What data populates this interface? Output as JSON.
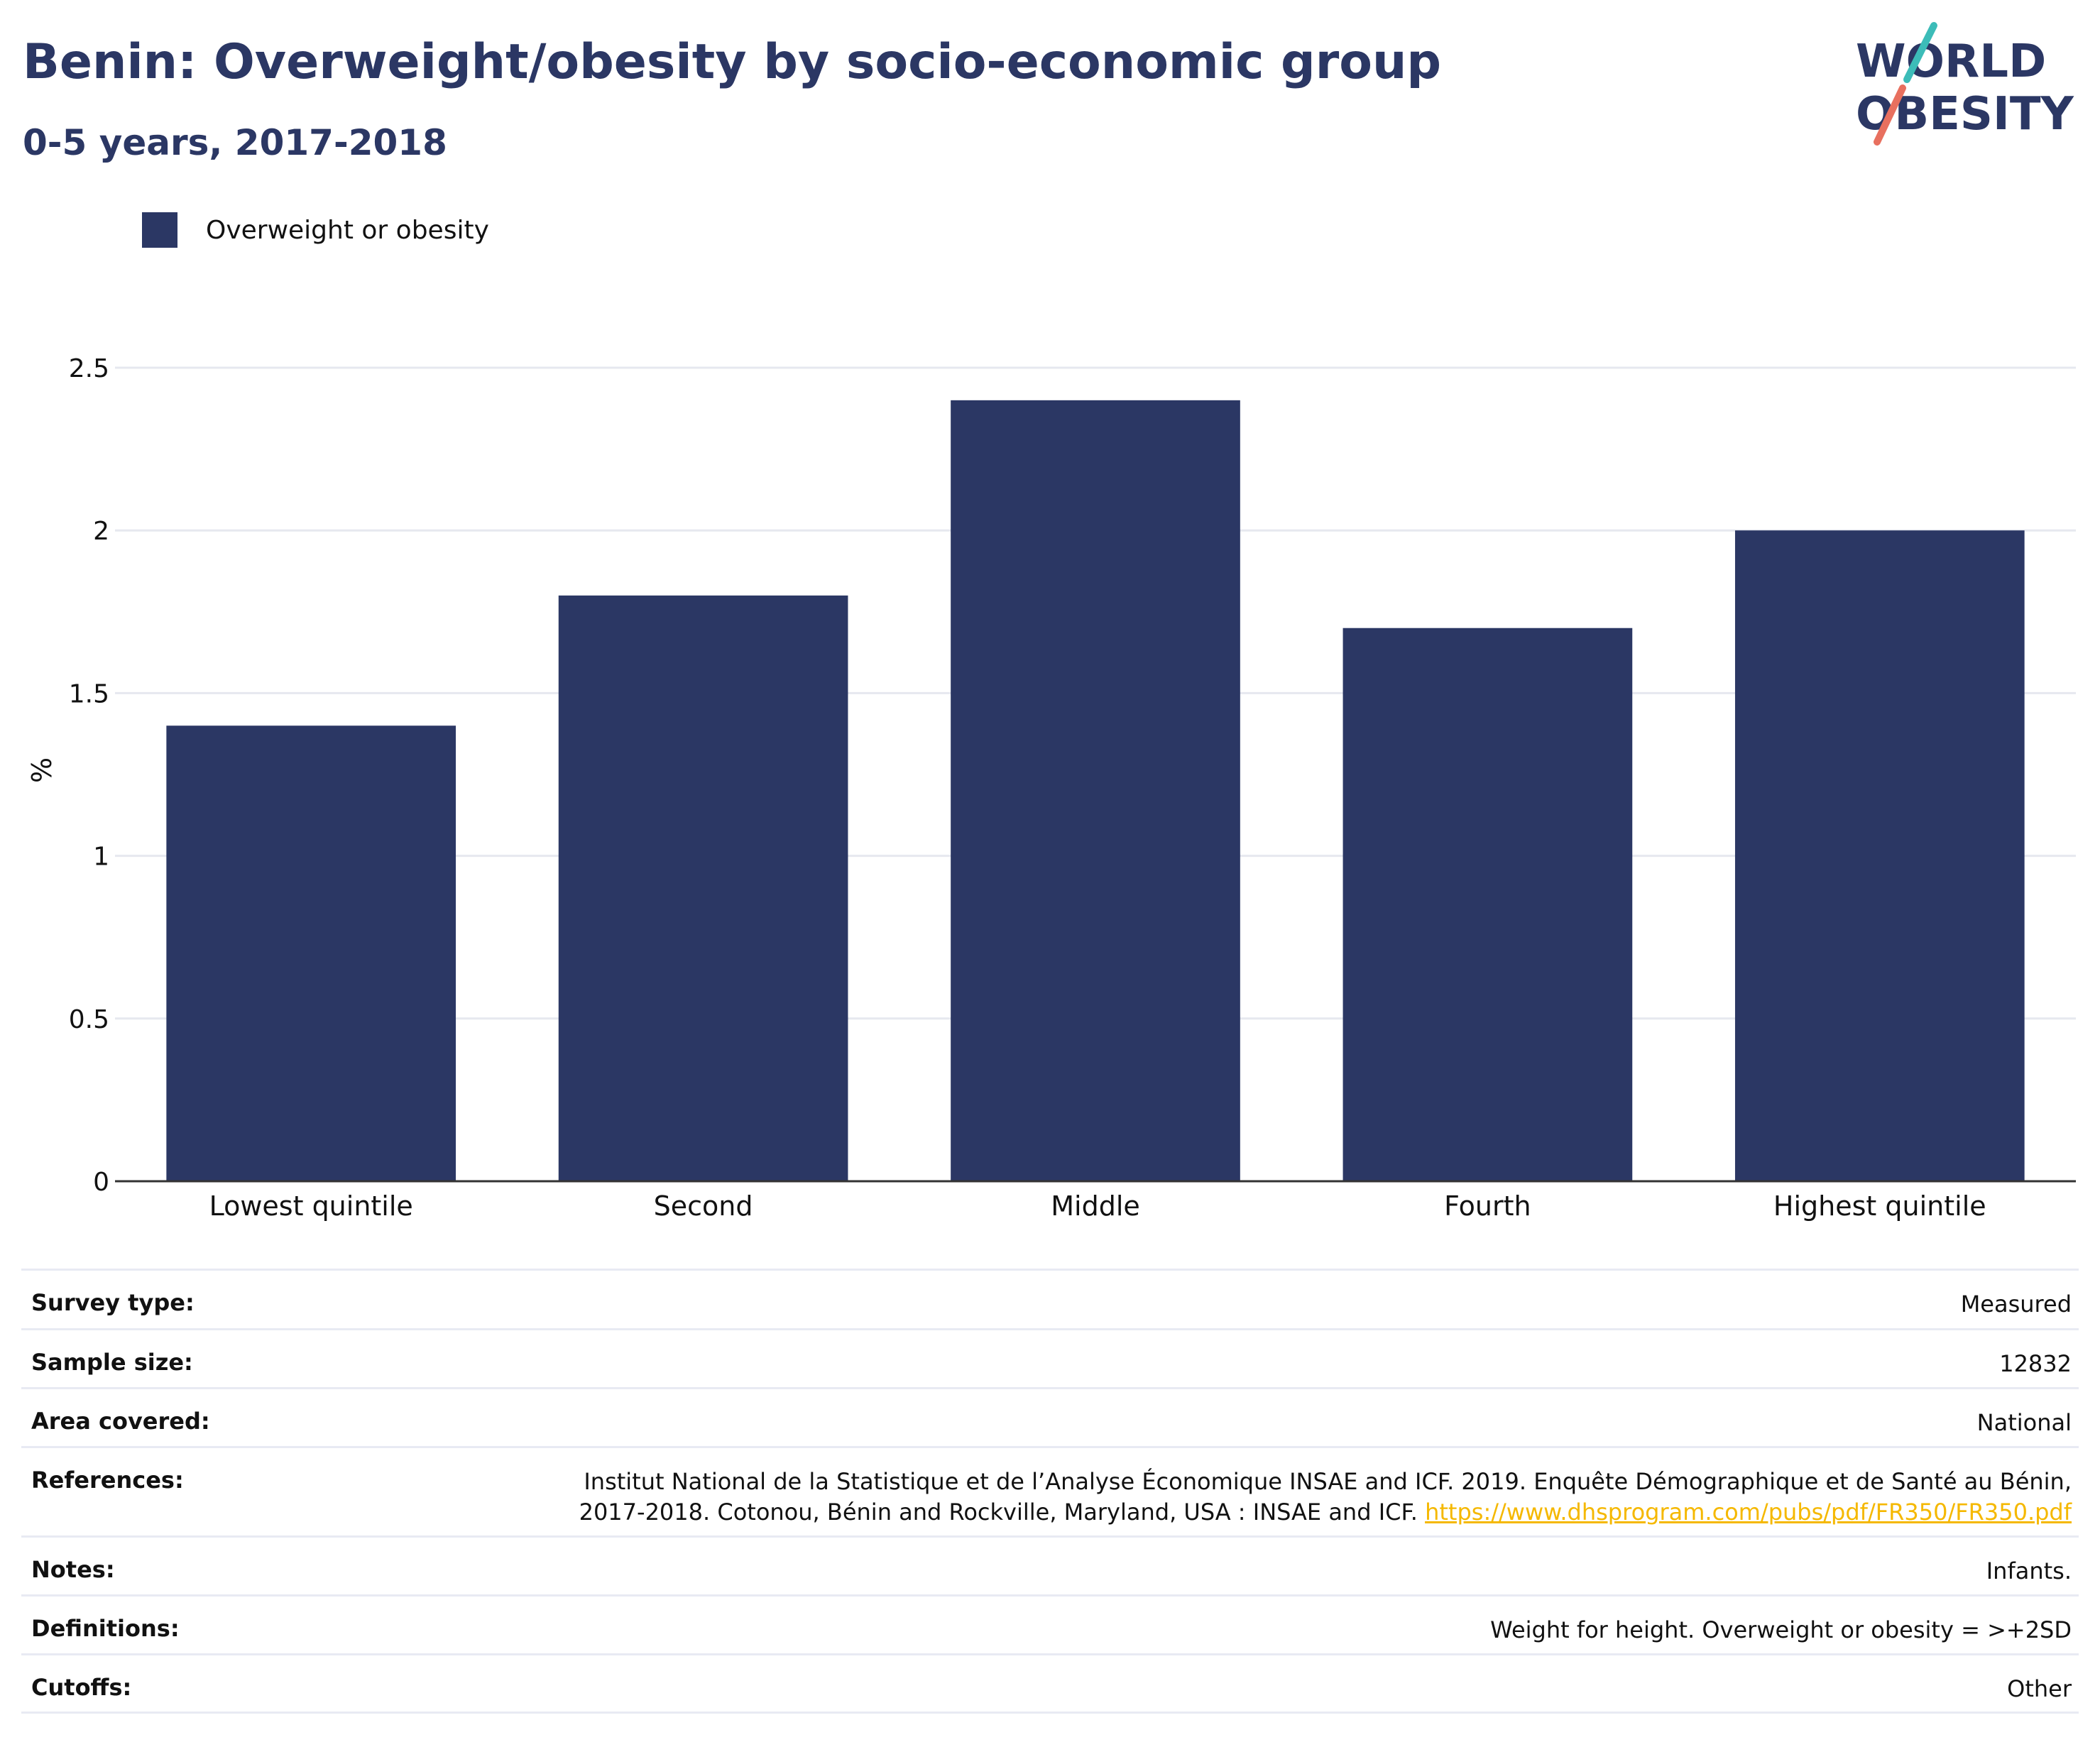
{
  "header": {
    "title": "Benin: Overweight/obesity by socio-economic group",
    "subtitle": "0-5 years, 2017-2018"
  },
  "logo": {
    "line1": "WORLD",
    "line2": "OBESITY",
    "colors": {
      "text": "#2b3764",
      "teal": "#3cbcb8",
      "coral": "#e8705f"
    }
  },
  "legend": {
    "label": "Overweight or obesity"
  },
  "colors": {
    "bar": "#2b3764",
    "grid": "#e6e8ef",
    "axis": "#333333",
    "link": "#f5b800"
  },
  "chart_data": {
    "type": "bar",
    "categories": [
      "Lowest quintile",
      "Second",
      "Middle",
      "Fourth",
      "Highest quintile"
    ],
    "series": [
      {
        "name": "Overweight or obesity",
        "values": [
          1.4,
          1.8,
          2.4,
          1.7,
          2.0
        ]
      }
    ],
    "ylabel": "%",
    "ylim": [
      0,
      2.5
    ],
    "yticks": [
      0,
      0.5,
      1,
      1.5,
      2,
      2.5
    ],
    "ytick_labels": [
      "0",
      "0.5",
      "1",
      "1.5",
      "2",
      "2.5"
    ],
    "grid": true,
    "legend_position": "top-left"
  },
  "info": {
    "survey_type": {
      "key": "Survey type:",
      "value": "Measured"
    },
    "sample_size": {
      "key": "Sample size:",
      "value": "12832"
    },
    "area_covered": {
      "key": "Area covered:",
      "value": "National"
    },
    "references": {
      "key": "References:",
      "line1": "Institut National de la Statistique et de l’Analyse Économique INSAE and ICF. 2019. Enquête Démographique et de Santé au Bénin,",
      "line2": "2017-2018. Cotonou, Bénin and Rockville, Maryland, USA : INSAE and ICF.",
      "link": "https://www.dhsprogram.com/pubs/pdf/FR350/FR350.pdf"
    },
    "notes": {
      "key": "Notes:",
      "value": "Infants."
    },
    "definitions": {
      "key": "Definitions:",
      "value": "Weight for height. Overweight or obesity = >+2SD"
    },
    "cutoffs": {
      "key": "Cutoffs:",
      "value": "Other"
    }
  }
}
